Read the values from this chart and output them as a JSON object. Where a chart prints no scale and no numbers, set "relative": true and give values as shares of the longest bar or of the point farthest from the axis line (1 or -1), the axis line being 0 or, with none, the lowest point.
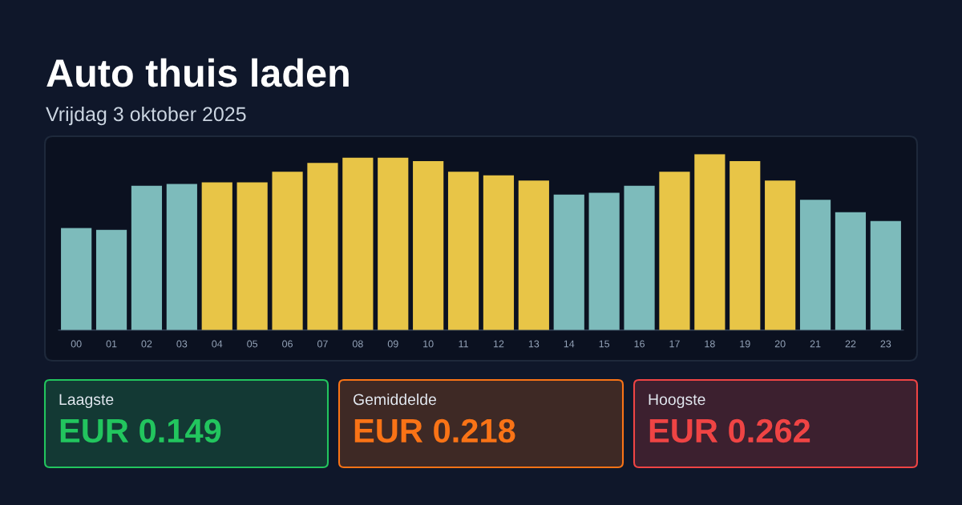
{
  "chart_data": [
    {
      "type": "bar",
      "title": "Auto thuis laden",
      "subtitle": "Vrijdag 3 oktober 2025",
      "categories": [
        "00",
        "01",
        "02",
        "03",
        "04",
        "05",
        "06",
        "07",
        "08",
        "09",
        "10",
        "11",
        "12",
        "13",
        "14",
        "15",
        "16",
        "17",
        "18",
        "19",
        "20",
        "21",
        "22",
        "23"
      ],
      "values": [
        0.58,
        0.57,
        0.82,
        0.83,
        0.84,
        0.84,
        0.9,
        0.95,
        0.98,
        0.98,
        0.96,
        0.9,
        0.88,
        0.85,
        0.77,
        0.78,
        0.82,
        0.9,
        1,
        0.96,
        0.85,
        0.74,
        0.67,
        0.62
      ],
      "colors": [
        "#7dbbbb",
        "#7dbbbb",
        "#7dbbbb",
        "#7dbbbb",
        "#e8c547",
        "#e8c547",
        "#e8c547",
        "#e8c547",
        "#e8c547",
        "#e8c547",
        "#e8c547",
        "#e8c547",
        "#e8c547",
        "#e8c547",
        "#7dbbbb",
        "#7dbbbb",
        "#7dbbbb",
        "#e8c547",
        "#e8c547",
        "#e8c547",
        "#e8c547",
        "#7dbbbb",
        "#7dbbbb",
        "#7dbbbb"
      ],
      "relative": true,
      "grid": false,
      "legend": false
    },
    {
      "type": "other",
      "title": "Laagste",
      "annotations": [
        "EUR 0.149"
      ],
      "color": "#22c55e"
    },
    {
      "type": "other",
      "title": "Gemiddelde",
      "annotations": [
        "EUR 0.218"
      ],
      "color": "#f97316"
    },
    {
      "type": "other",
      "title": "Hoogste",
      "annotations": [
        "EUR 0.262"
      ],
      "color": "#ef4444"
    }
  ]
}
